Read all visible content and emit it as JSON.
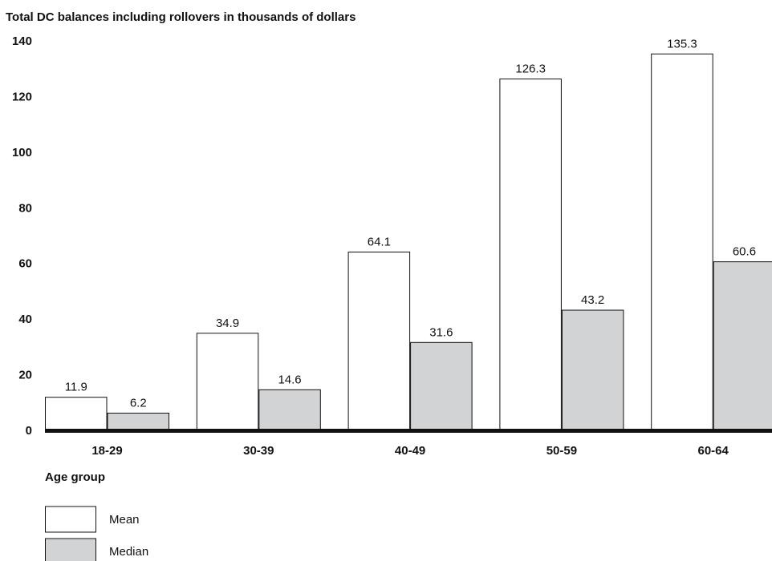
{
  "chart_data": {
    "type": "bar",
    "title": "Total DC balances including rollovers in thousands of dollars",
    "xlabel": "Age group",
    "ylabel": "",
    "categories": [
      "18-29",
      "30-39",
      "40-49",
      "50-59",
      "60-64"
    ],
    "series": [
      {
        "name": "Mean",
        "values": [
          11.9,
          34.9,
          64.1,
          126.3,
          135.3
        ],
        "color": "#ffffff"
      },
      {
        "name": "Median",
        "values": [
          6.2,
          14.6,
          31.6,
          43.2,
          60.6
        ],
        "color": "#d1d3d4"
      }
    ],
    "ylim": [
      0,
      140
    ],
    "yticks": [
      "0",
      "20",
      "40",
      "60",
      "80",
      "100",
      "120",
      "140"
    ],
    "data_labels": [
      [
        "11.9",
        "34.9",
        "64.1",
        "126.3",
        "135.3"
      ],
      [
        "6.2",
        "14.6",
        "31.6",
        "43.2",
        "60.6"
      ]
    ],
    "grid": false,
    "legend_position": "bottom-left"
  }
}
